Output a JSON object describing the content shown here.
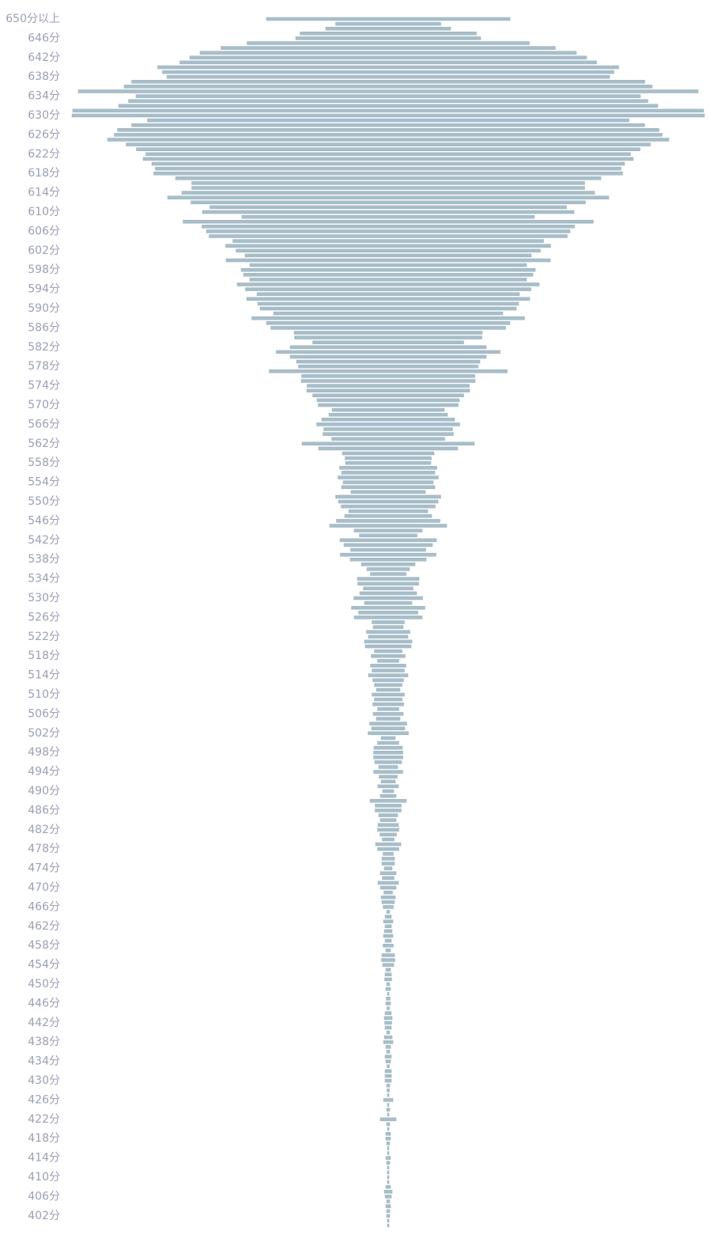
{
  "chart_data": {
    "type": "funnel",
    "color": "#a8bfca",
    "label_color": "#9a9fb4",
    "categories": [
      "650分以上",
      null,
      null,
      null,
      "646分",
      null,
      null,
      null,
      "642分",
      null,
      null,
      null,
      "638分",
      null,
      null,
      null,
      "634分",
      null,
      null,
      null,
      "630分",
      null,
      null,
      null,
      "626分",
      null,
      null,
      null,
      "622分",
      null,
      null,
      null,
      "618分",
      null,
      null,
      null,
      "614分",
      null,
      null,
      null,
      "610分",
      null,
      null,
      null,
      "606分",
      null,
      null,
      null,
      "602分",
      null,
      null,
      null,
      "598分",
      null,
      null,
      null,
      "594分",
      null,
      null,
      null,
      "590分",
      null,
      null,
      null,
      "586分",
      null,
      null,
      null,
      "582分",
      null,
      null,
      null,
      "578分",
      null,
      null,
      null,
      "574分",
      null,
      null,
      null,
      "570分",
      null,
      null,
      null,
      "566分",
      null,
      null,
      null,
      "562分",
      null,
      null,
      null,
      "558分",
      null,
      null,
      null,
      "554分",
      null,
      null,
      null,
      "550分",
      null,
      null,
      null,
      "546分",
      null,
      null,
      null,
      "542分",
      null,
      null,
      null,
      "538分",
      null,
      null,
      null,
      "534分",
      null,
      null,
      null,
      "530分",
      null,
      null,
      null,
      "526分",
      null,
      null,
      null,
      "522分",
      null,
      null,
      null,
      "518分",
      null,
      null,
      null,
      "514分",
      null,
      null,
      null,
      "510分",
      null,
      null,
      null,
      "506分",
      null,
      null,
      null,
      "502分",
      null,
      null,
      null,
      "498分",
      null,
      null,
      null,
      "494分",
      null,
      null,
      null,
      "490分",
      null,
      null,
      null,
      "486分",
      null,
      null,
      null,
      "482分",
      null,
      null,
      null,
      "478分",
      null,
      null,
      null,
      "474分",
      null,
      null,
      null,
      "470分",
      null,
      null,
      null,
      "466分",
      null,
      null,
      null,
      "462分",
      null,
      null,
      null,
      "458分",
      null,
      null,
      null,
      "454分",
      null,
      null,
      null,
      "450分",
      null,
      null,
      null,
      "446分",
      null,
      null,
      null,
      "442分",
      null,
      null,
      null,
      "438分",
      null,
      null,
      null,
      "434分",
      null,
      null,
      null,
      "430分",
      null,
      null,
      null,
      "426分",
      null,
      null,
      null,
      "422分",
      null,
      null,
      null,
      "418分",
      null,
      null,
      null,
      "414分",
      null,
      null,
      null,
      "410分",
      null,
      null,
      null,
      "406分",
      null,
      null,
      null,
      "402分",
      null,
      null
    ],
    "values": [
      308,
      133,
      158,
      223,
      234,
      357,
      423,
      476,
      502,
      527,
      583,
      571,
      560,
      649,
      668,
      784,
      638,
      657,
      682,
      798,
      800,
      609,
      649,
      685,
      693,
      710,
      663,
      637,
      613,
      620,
      598,
      589,
      593,
      538,
      497,
      497,
      522,
      558,
      499,
      451,
      470,
      370,
      519,
      471,
      460,
      453,
      393,
      411,
      385,
      362,
      410,
      350,
      372,
      366,
      350,
      382,
      361,
      332,
      358,
      330,
      324,
      290,
      345,
      308,
      297,
      238,
      237,
      191,
      248,
      283,
      248,
      232,
      227,
      301,
      219,
      220,
      205,
      206,
      191,
      180,
      177,
      142,
      150,
      168,
      181,
      163,
      165,
      143,
      218,
      176,
      116,
      109,
      108,
      123,
      118,
      127,
      114,
      118,
      94,
      133,
      126,
      119,
      100,
      110,
      131,
      148,
      86,
      73,
      122,
      112,
      95,
      121,
      96,
      68,
      54,
      45,
      78,
      77,
      63,
      72,
      87,
      60,
      93,
      75,
      86,
      41,
      38,
      55,
      50,
      60,
      58,
      35,
      43,
      27,
      45,
      41,
      50,
      39,
      35,
      30,
      41,
      35,
      39,
      27,
      38,
      30,
      47,
      42,
      51,
      18,
      27,
      36,
      37,
      37,
      34,
      24,
      37,
      23,
      18,
      26,
      14,
      20,
      46,
      33,
      33,
      24,
      20,
      26,
      27,
      21,
      15,
      32,
      27,
      13,
      16,
      16,
      10,
      20,
      15,
      26,
      20,
      11,
      18,
      16,
      13,
      4,
      8,
      12,
      8,
      10,
      12,
      8,
      13,
      6,
      16,
      17,
      14,
      6,
      8,
      9,
      4,
      6,
      2,
      5,
      6,
      3,
      8,
      10,
      9,
      8,
      4,
      10,
      12,
      6,
      4,
      8,
      6,
      3,
      8,
      8,
      8,
      4,
      3,
      2,
      12,
      2,
      4,
      2,
      20,
      4,
      2,
      6,
      6,
      4,
      2,
      2,
      6,
      4,
      2,
      2,
      2,
      2,
      6,
      10,
      8,
      4,
      6,
      4,
      4,
      2,
      2
    ]
  }
}
